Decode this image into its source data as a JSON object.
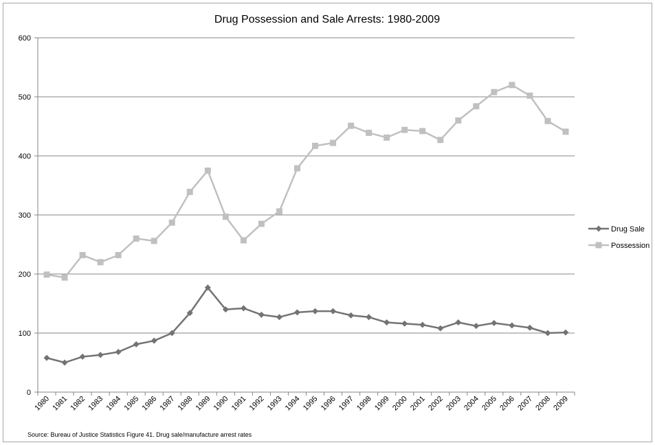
{
  "chart_data": {
    "type": "line",
    "title": "Drug Possession and Sale Arrests: 1980-2009",
    "source": "Source: Bureau of Justice Statistics Figure 41. Drug sale/manufacture arrest rates",
    "ylim": [
      0,
      600
    ],
    "yticks": [
      "0",
      "100",
      "200",
      "300",
      "400",
      "500",
      "600"
    ],
    "grid": true,
    "legend_position": "right",
    "categories": [
      "1980",
      "1981",
      "1982",
      "1983",
      "1984",
      "1985",
      "1986",
      "1987",
      "1988",
      "1989",
      "1990",
      "1991",
      "1992",
      "1993",
      "1994",
      "1995",
      "1996",
      "1997",
      "1998",
      "1999",
      "2000",
      "2001",
      "2002",
      "2003",
      "2004",
      "2005",
      "2006",
      "2007",
      "2008",
      "2009"
    ],
    "series": [
      {
        "name": "Drug Sale",
        "color": "#737373",
        "marker": "diamond",
        "values": [
          58,
          50,
          60,
          63,
          68,
          81,
          87,
          100,
          134,
          177,
          140,
          142,
          131,
          127,
          135,
          137,
          137,
          130,
          127,
          118,
          116,
          114,
          108,
          118,
          112,
          117,
          113,
          109,
          100,
          101
        ]
      },
      {
        "name": "Possession",
        "color": "#c0c0c0",
        "marker": "square",
        "values": [
          199,
          194,
          232,
          220,
          232,
          260,
          256,
          287,
          339,
          375,
          297,
          257,
          285,
          306,
          379,
          417,
          422,
          451,
          439,
          431,
          444,
          442,
          427,
          460,
          484,
          508,
          520,
          502,
          459,
          441
        ]
      }
    ]
  }
}
